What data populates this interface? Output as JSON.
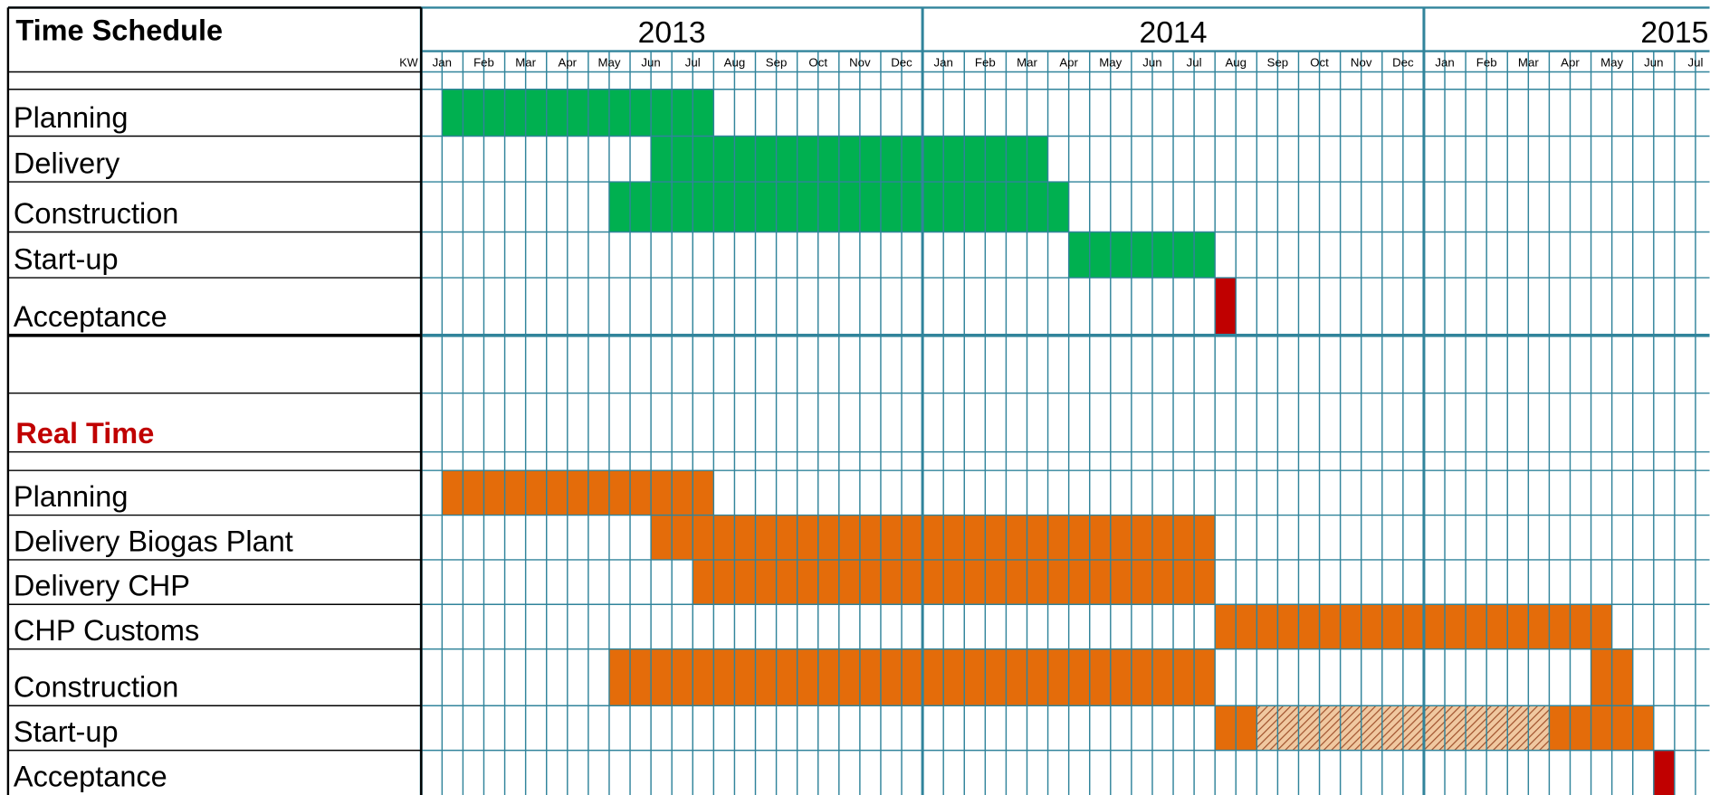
{
  "title": "Time Schedule",
  "kw": "KW",
  "section_label": "Real Time",
  "years": [
    "2013",
    "2014",
    "2015"
  ],
  "months": [
    "Jan",
    "Feb",
    "Mar",
    "Apr",
    "May",
    "Jun",
    "Jul",
    "Aug",
    "Sep",
    "Oct",
    "Nov",
    "Dec"
  ],
  "colors": {
    "planned": "#00b050",
    "actual": "#e46c0a",
    "acceptance": "#c00000"
  },
  "planned": [
    {
      "label": "Planning",
      "bars": [
        {
          "start": 0.5,
          "end": 7,
          "color": "planned"
        }
      ]
    },
    {
      "label": "Delivery",
      "bars": [
        {
          "start": 5.5,
          "end": 15,
          "color": "planned"
        }
      ]
    },
    {
      "label": "Construction",
      "bars": [
        {
          "start": 4.5,
          "end": 15.5,
          "color": "planned"
        }
      ]
    },
    {
      "label": "Start-up",
      "bars": [
        {
          "start": 15.5,
          "end": 19,
          "color": "planned"
        }
      ]
    },
    {
      "label": "Acceptance",
      "bars": [
        {
          "start": 19,
          "end": 19.5,
          "color": "acceptance"
        }
      ]
    }
  ],
  "actual": [
    {
      "label": "Planning",
      "bars": [
        {
          "start": 0.5,
          "end": 7,
          "color": "actual"
        }
      ]
    },
    {
      "label": "Delivery Biogas Plant",
      "bars": [
        {
          "start": 5.5,
          "end": 19,
          "color": "actual"
        }
      ]
    },
    {
      "label": "Delivery CHP",
      "bars": [
        {
          "start": 6.5,
          "end": 19,
          "color": "actual"
        }
      ]
    },
    {
      "label": "CHP Customs",
      "bars": [
        {
          "start": 19,
          "end": 28.5,
          "color": "actual"
        }
      ]
    },
    {
      "label": "Construction",
      "bars": [
        {
          "start": 4.5,
          "end": 19,
          "color": "actual"
        },
        {
          "start": 28,
          "end": 29,
          "color": "actual"
        }
      ]
    },
    {
      "label": "Start-up",
      "bars": [
        {
          "start": 19,
          "end": 20,
          "color": "actual"
        },
        {
          "start": 20,
          "end": 27,
          "color": "actual",
          "hatched": true
        },
        {
          "start": 27,
          "end": 29.5,
          "color": "actual"
        }
      ]
    },
    {
      "label": "Acceptance",
      "bars": [
        {
          "start": 29.5,
          "end": 30,
          "color": "acceptance"
        }
      ]
    }
  ]
}
